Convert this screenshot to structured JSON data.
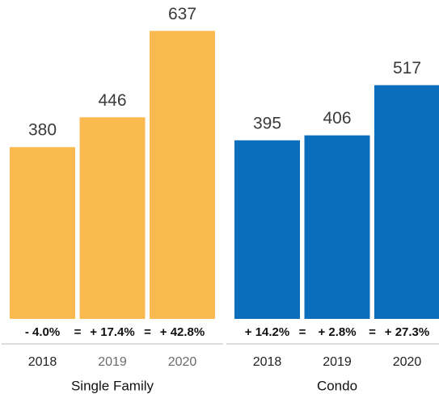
{
  "chart_data": [
    {
      "type": "bar",
      "title": "Single Family",
      "categories": [
        "2018",
        "2019",
        "2020"
      ],
      "category_colors": [
        "#222222",
        "#6b6b6b",
        "#6b6b6b"
      ],
      "values": [
        380,
        446,
        637
      ],
      "color": "#fbba50",
      "change_labels": [
        "- 4.0%",
        "+ 17.4%",
        "+ 42.8%"
      ],
      "separator": "=",
      "ylim": [
        0,
        700
      ]
    },
    {
      "type": "bar",
      "title": "Condo",
      "categories": [
        "2018",
        "2019",
        "2020"
      ],
      "category_colors": [
        "#222222",
        "#222222",
        "#222222"
      ],
      "values": [
        395,
        406,
        517
      ],
      "color": "#0a6ebd",
      "change_labels": [
        "+ 14.2%",
        "+ 2.8%",
        "+ 27.3%"
      ],
      "separator": "=",
      "ylim": [
        0,
        700
      ]
    }
  ]
}
